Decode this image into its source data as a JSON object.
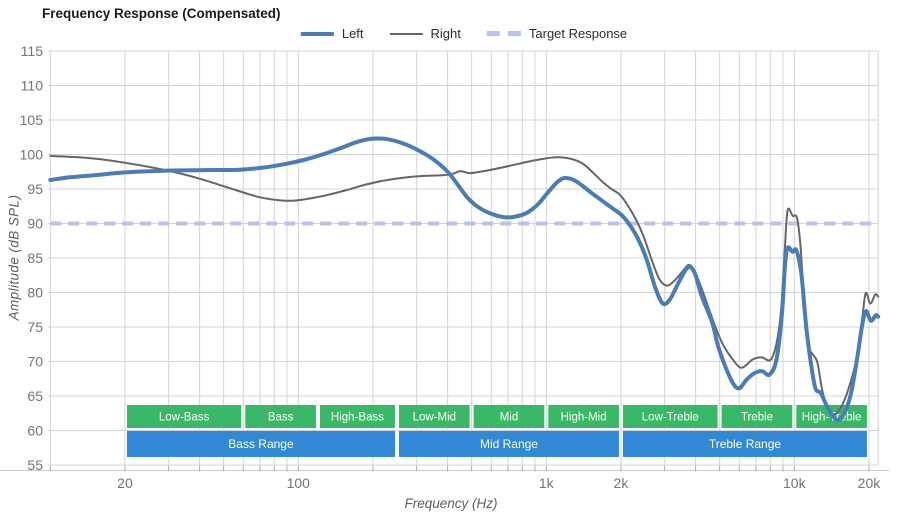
{
  "chart_data": {
    "type": "line",
    "title": "Frequency Response (Compensated)",
    "xlabel": "Frequency (Hz)",
    "ylabel": "Amplitude (dB SPL)",
    "x_scale": "log",
    "xlim": [
      10,
      21800
    ],
    "ylim": [
      55,
      115
    ],
    "grid": "on",
    "legend_position": "top-center",
    "y_ticks": [
      115,
      110,
      105,
      100,
      95,
      90,
      85,
      80,
      75,
      70,
      65,
      60,
      55
    ],
    "x_ticks": [
      {
        "f": 20,
        "label": "20"
      },
      {
        "f": 100,
        "label": "100"
      },
      {
        "f": 1000,
        "label": "1k"
      },
      {
        "f": 2000,
        "label": "2k"
      },
      {
        "f": 10000,
        "label": "10k"
      },
      {
        "f": 20000,
        "label": "20k"
      }
    ],
    "series": [
      {
        "name": "Right",
        "color": "#666666",
        "width": 2,
        "dash": false,
        "points": [
          [
            10,
            99.8
          ],
          [
            13,
            99.6
          ],
          [
            16,
            99.3
          ],
          [
            20,
            98.8
          ],
          [
            25,
            98.2
          ],
          [
            32,
            97.4
          ],
          [
            40,
            96.5
          ],
          [
            50,
            95.4
          ],
          [
            60,
            94.5
          ],
          [
            70,
            93.8
          ],
          [
            82,
            93.4
          ],
          [
            95,
            93.3
          ],
          [
            110,
            93.6
          ],
          [
            130,
            94.1
          ],
          [
            155,
            94.8
          ],
          [
            185,
            95.6
          ],
          [
            220,
            96.2
          ],
          [
            260,
            96.6
          ],
          [
            320,
            96.9
          ],
          [
            380,
            97.0
          ],
          [
            420,
            97.2
          ],
          [
            450,
            97.6
          ],
          [
            490,
            97.3
          ],
          [
            540,
            97.5
          ],
          [
            620,
            97.9
          ],
          [
            720,
            98.4
          ],
          [
            830,
            98.9
          ],
          [
            950,
            99.3
          ],
          [
            1100,
            99.6
          ],
          [
            1250,
            99.4
          ],
          [
            1400,
            98.7
          ],
          [
            1550,
            97.3
          ],
          [
            1700,
            95.9
          ],
          [
            1850,
            94.9
          ],
          [
            2000,
            94.0
          ],
          [
            2250,
            91.2
          ],
          [
            2450,
            88.4
          ],
          [
            2650,
            84.9
          ],
          [
            2850,
            82.0
          ],
          [
            3070,
            81.0
          ],
          [
            3300,
            81.8
          ],
          [
            3550,
            83.1
          ],
          [
            3750,
            84.0
          ],
          [
            3950,
            83.2
          ],
          [
            4250,
            80.4
          ],
          [
            4600,
            76.9
          ],
          [
            5100,
            72.8
          ],
          [
            5700,
            70.1
          ],
          [
            6150,
            69.1
          ],
          [
            6800,
            70.3
          ],
          [
            7400,
            70.6
          ],
          [
            8000,
            70.2
          ],
          [
            8450,
            72.4
          ],
          [
            8850,
            77.5
          ],
          [
            9150,
            86.0
          ],
          [
            9400,
            91.9
          ],
          [
            9850,
            91.1
          ],
          [
            10250,
            90.8
          ],
          [
            10600,
            86.6
          ],
          [
            11000,
            77.6
          ],
          [
            11400,
            72.3
          ],
          [
            11900,
            71.0
          ],
          [
            12400,
            69.8
          ],
          [
            13000,
            65.6
          ],
          [
            13800,
            62.7
          ],
          [
            14500,
            62.3
          ],
          [
            15400,
            63.3
          ],
          [
            16500,
            65.9
          ],
          [
            17800,
            70.3
          ],
          [
            18700,
            75.6
          ],
          [
            19400,
            79.9
          ],
          [
            20250,
            78.4
          ],
          [
            21200,
            79.7
          ],
          [
            21800,
            79.4
          ]
        ]
      },
      {
        "name": "Left",
        "color": "#4a7db8",
        "width": 4,
        "dash": false,
        "points": [
          [
            10,
            96.3
          ],
          [
            12,
            96.7
          ],
          [
            15,
            97.0
          ],
          [
            20,
            97.4
          ],
          [
            26,
            97.6
          ],
          [
            34,
            97.7
          ],
          [
            45,
            97.75
          ],
          [
            58,
            97.8
          ],
          [
            72,
            98.1
          ],
          [
            88,
            98.6
          ],
          [
            105,
            99.2
          ],
          [
            125,
            100.0
          ],
          [
            150,
            101.0
          ],
          [
            175,
            101.9
          ],
          [
            200,
            102.3
          ],
          [
            230,
            102.2
          ],
          [
            265,
            101.6
          ],
          [
            305,
            100.6
          ],
          [
            350,
            99.3
          ],
          [
            400,
            97.5
          ],
          [
            440,
            95.6
          ],
          [
            480,
            93.8
          ],
          [
            530,
            92.4
          ],
          [
            600,
            91.4
          ],
          [
            680,
            90.9
          ],
          [
            750,
            91.0
          ],
          [
            830,
            91.5
          ],
          [
            920,
            92.7
          ],
          [
            1010,
            94.4
          ],
          [
            1100,
            95.9
          ],
          [
            1180,
            96.6
          ],
          [
            1270,
            96.4
          ],
          [
            1360,
            95.8
          ],
          [
            1500,
            94.6
          ],
          [
            1650,
            93.5
          ],
          [
            1800,
            92.5
          ],
          [
            2000,
            91.3
          ],
          [
            2150,
            90.0
          ],
          [
            2350,
            87.7
          ],
          [
            2550,
            84.6
          ],
          [
            2750,
            80.7
          ],
          [
            2950,
            78.4
          ],
          [
            3150,
            79.0
          ],
          [
            3400,
            81.3
          ],
          [
            3650,
            83.3
          ],
          [
            3800,
            83.7
          ],
          [
            3980,
            82.7
          ],
          [
            4240,
            79.4
          ],
          [
            4670,
            75.6
          ],
          [
            4960,
            71.9
          ],
          [
            5550,
            67.4
          ],
          [
            5970,
            66.1
          ],
          [
            6400,
            67.3
          ],
          [
            6900,
            68.3
          ],
          [
            7430,
            68.6
          ],
          [
            7940,
            68.1
          ],
          [
            8480,
            70.3
          ],
          [
            8920,
            77.0
          ],
          [
            9170,
            84.0
          ],
          [
            9400,
            86.5
          ],
          [
            9830,
            85.9
          ],
          [
            10200,
            86.1
          ],
          [
            10670,
            82.8
          ],
          [
            11180,
            74.9
          ],
          [
            11760,
            68.9
          ],
          [
            12200,
            66.0
          ],
          [
            12800,
            65.4
          ],
          [
            13640,
            63.3
          ],
          [
            14930,
            61.5
          ],
          [
            16090,
            62.9
          ],
          [
            17010,
            65.7
          ],
          [
            17990,
            70.8
          ],
          [
            18770,
            75.2
          ],
          [
            19450,
            77.3
          ],
          [
            20350,
            75.9
          ],
          [
            21300,
            76.7
          ],
          [
            21800,
            76.5
          ]
        ]
      },
      {
        "name": "Target Response",
        "color": "#b8c1f2",
        "width": 4,
        "dash": true,
        "points": [
          [
            10,
            90
          ],
          [
            21800,
            90
          ]
        ]
      }
    ],
    "bands": {
      "sub": [
        {
          "label": "Low-Bass",
          "from": 20,
          "to": 60
        },
        {
          "label": "Bass",
          "from": 60,
          "to": 120
        },
        {
          "label": "High-Bass",
          "from": 120,
          "to": 250
        },
        {
          "label": "Low-Mid",
          "from": 250,
          "to": 500
        },
        {
          "label": "Mid",
          "from": 500,
          "to": 1000
        },
        {
          "label": "High-Mid",
          "from": 1000,
          "to": 2000
        },
        {
          "label": "Low-Treble",
          "from": 2000,
          "to": 5000
        },
        {
          "label": "Treble",
          "from": 5000,
          "to": 10000
        },
        {
          "label": "High-Treble",
          "from": 10000,
          "to": 20000
        }
      ],
      "main": [
        {
          "label": "Bass Range",
          "from": 20,
          "to": 250
        },
        {
          "label": "Mid Range",
          "from": 250,
          "to": 2000
        },
        {
          "label": "Treble Range",
          "from": 2000,
          "to": 20000
        }
      ]
    }
  },
  "legend": {
    "left": "Left",
    "right": "Right",
    "target": "Target Response"
  },
  "colors": {
    "left_series": "#4a7db8",
    "right_series": "#666666",
    "target_series": "#b8c1f2",
    "grid": "#d4d4d4",
    "minor_tick": "#a9a9a9",
    "baseline": "#c9c9c9",
    "band_green": "#39b968",
    "band_blue": "#3189d5",
    "band_text": "#ffffff",
    "axis_text": "#757575",
    "title_text": "#1c1c1c",
    "legend_text": "#2b2b2b",
    "axis_title_text": "#5f5f5f"
  }
}
